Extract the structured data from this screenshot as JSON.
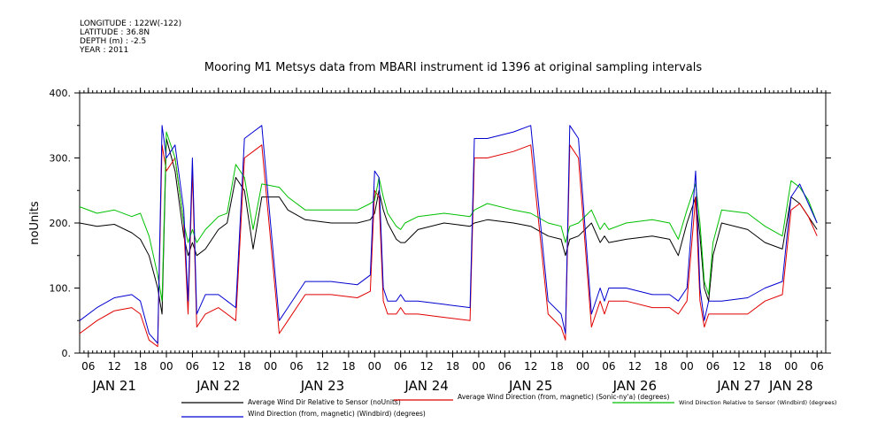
{
  "header": {
    "longitude": "LONGITUDE : 122W(-122)",
    "latitude": "LATITUDE : 36.8N",
    "depth": "DEPTH (m) : -2.5",
    "year": "YEAR : 2011"
  },
  "chart_data": {
    "type": "line",
    "title": "Mooring M1 Metsys data from MBARI instrument id 1396 at original sampling intervals",
    "ylabel": "noUnits",
    "xlabel": "",
    "ylim": [
      0,
      400
    ],
    "yticks": [
      0,
      100,
      200,
      300,
      400
    ],
    "ytick_labels": [
      "0.",
      "100.",
      "200.",
      "300.",
      "400."
    ],
    "xlim": [
      "2011-01-21T04:00",
      "2011-01-28T08:00"
    ],
    "hour_ticks": [
      {
        "t": "2011-01-21T06:00",
        "label": "06"
      },
      {
        "t": "2011-01-21T12:00",
        "label": "12"
      },
      {
        "t": "2011-01-21T18:00",
        "label": "18"
      },
      {
        "t": "2011-01-22T00:00",
        "label": "00"
      },
      {
        "t": "2011-01-22T06:00",
        "label": "06"
      },
      {
        "t": "2011-01-22T12:00",
        "label": "12"
      },
      {
        "t": "2011-01-22T18:00",
        "label": "18"
      },
      {
        "t": "2011-01-23T00:00",
        "label": "00"
      },
      {
        "t": "2011-01-23T06:00",
        "label": "06"
      },
      {
        "t": "2011-01-23T12:00",
        "label": "12"
      },
      {
        "t": "2011-01-23T18:00",
        "label": "18"
      },
      {
        "t": "2011-01-24T00:00",
        "label": "00"
      },
      {
        "t": "2011-01-24T06:00",
        "label": "06"
      },
      {
        "t": "2011-01-24T12:00",
        "label": "12"
      },
      {
        "t": "2011-01-24T18:00",
        "label": "18"
      },
      {
        "t": "2011-01-25T00:00",
        "label": "00"
      },
      {
        "t": "2011-01-25T06:00",
        "label": "06"
      },
      {
        "t": "2011-01-25T12:00",
        "label": "12"
      },
      {
        "t": "2011-01-25T18:00",
        "label": "18"
      },
      {
        "t": "2011-01-26T00:00",
        "label": "00"
      },
      {
        "t": "2011-01-26T06:00",
        "label": "06"
      },
      {
        "t": "2011-01-26T12:00",
        "label": "12"
      },
      {
        "t": "2011-01-26T18:00",
        "label": "18"
      },
      {
        "t": "2011-01-27T00:00",
        "label": "00"
      },
      {
        "t": "2011-01-27T06:00",
        "label": "06"
      },
      {
        "t": "2011-01-27T12:00",
        "label": "12"
      },
      {
        "t": "2011-01-27T18:00",
        "label": "18"
      },
      {
        "t": "2011-01-28T00:00",
        "label": "00"
      },
      {
        "t": "2011-01-28T06:00",
        "label": "06"
      }
    ],
    "day_labels": [
      {
        "t": "2011-01-21T12:00",
        "label": "JAN 21"
      },
      {
        "t": "2011-01-22T12:00",
        "label": "JAN 22"
      },
      {
        "t": "2011-01-23T12:00",
        "label": "JAN 23"
      },
      {
        "t": "2011-01-24T12:00",
        "label": "JAN 24"
      },
      {
        "t": "2011-01-25T12:00",
        "label": "JAN 25"
      },
      {
        "t": "2011-01-26T12:00",
        "label": "JAN 26"
      },
      {
        "t": "2011-01-27T12:00",
        "label": "JAN 27"
      },
      {
        "t": "2011-01-28T00:00",
        "label": "JAN 28"
      }
    ],
    "grid": false,
    "legend_position": "bottom",
    "series": [
      {
        "name": "Average Wind Dir Relative to Sensor (noUnits)",
        "color": "#000000",
        "x": [
          "2011-01-21T04:00",
          "2011-01-21T08:00",
          "2011-01-21T12:00",
          "2011-01-21T16:00",
          "2011-01-21T18:00",
          "2011-01-21T20:00",
          "2011-01-21T22:00",
          "2011-01-21T23:00",
          "2011-01-22T00:00",
          "2011-01-22T02:00",
          "2011-01-22T04:00",
          "2011-01-22T05:00",
          "2011-01-22T06:00",
          "2011-01-22T07:00",
          "2011-01-22T09:00",
          "2011-01-22T12:00",
          "2011-01-22T14:00",
          "2011-01-22T16:00",
          "2011-01-22T18:00",
          "2011-01-22T20:00",
          "2011-01-22T22:00",
          "2011-01-23T02:00",
          "2011-01-23T04:00",
          "2011-01-23T08:00",
          "2011-01-23T14:00",
          "2011-01-23T20:00",
          "2011-01-23T23:00",
          "2011-01-24T00:00",
          "2011-01-24T01:00",
          "2011-01-24T02:00",
          "2011-01-24T03:00",
          "2011-01-24T05:00",
          "2011-01-24T06:00",
          "2011-01-24T07:00",
          "2011-01-24T10:00",
          "2011-01-24T16:00",
          "2011-01-24T22:00",
          "2011-01-24T23:00",
          "2011-01-25T02:00",
          "2011-01-25T08:00",
          "2011-01-25T12:00",
          "2011-01-25T16:00",
          "2011-01-25T19:00",
          "2011-01-25T20:00",
          "2011-01-25T21:00",
          "2011-01-25T23:00",
          "2011-01-26T02:00",
          "2011-01-26T04:00",
          "2011-01-26T05:00",
          "2011-01-26T06:00",
          "2011-01-26T10:00",
          "2011-01-26T16:00",
          "2011-01-26T20:00",
          "2011-01-26T22:00",
          "2011-01-27T00:00",
          "2011-01-27T02:00",
          "2011-01-27T03:00",
          "2011-01-27T04:00",
          "2011-01-27T05:00",
          "2011-01-27T06:00",
          "2011-01-27T08:00",
          "2011-01-27T14:00",
          "2011-01-27T18:00",
          "2011-01-27T22:00",
          "2011-01-28T00:00",
          "2011-01-28T02:00",
          "2011-01-28T04:00",
          "2011-01-28T06:00"
        ],
        "y": [
          200,
          195,
          198,
          185,
          175,
          150,
          100,
          60,
          330,
          280,
          180,
          150,
          170,
          150,
          160,
          190,
          200,
          270,
          250,
          160,
          240,
          240,
          220,
          205,
          200,
          200,
          205,
          215,
          250,
          220,
          200,
          175,
          170,
          170,
          190,
          200,
          195,
          200,
          205,
          200,
          195,
          180,
          175,
          150,
          175,
          180,
          200,
          170,
          180,
          170,
          175,
          180,
          175,
          150,
          200,
          240,
          180,
          100,
          80,
          150,
          200,
          190,
          170,
          160,
          240,
          230,
          210,
          190
        ]
      },
      {
        "name": "Average Wind Direction (from, magnetic) (Sonic-ny'a) (degrees)",
        "color": "#e00000",
        "x": [
          "2011-01-21T04:00",
          "2011-01-21T08:00",
          "2011-01-21T12:00",
          "2011-01-21T16:00",
          "2011-01-21T18:00",
          "2011-01-21T20:00",
          "2011-01-21T22:00",
          "2011-01-21T23:00",
          "2011-01-22T00:00",
          "2011-01-22T02:00",
          "2011-01-22T04:00",
          "2011-01-22T05:00",
          "2011-01-22T06:00",
          "2011-01-22T07:00",
          "2011-01-22T09:00",
          "2011-01-22T12:00",
          "2011-01-22T14:00",
          "2011-01-22T16:00",
          "2011-01-22T18:00",
          "2011-01-22T20:00",
          "2011-01-22T22:00",
          "2011-01-23T02:00",
          "2011-01-23T04:00",
          "2011-01-23T08:00",
          "2011-01-23T14:00",
          "2011-01-23T20:00",
          "2011-01-23T23:00",
          "2011-01-24T00:00",
          "2011-01-24T01:00",
          "2011-01-24T02:00",
          "2011-01-24T03:00",
          "2011-01-24T05:00",
          "2011-01-24T06:00",
          "2011-01-24T07:00",
          "2011-01-24T10:00",
          "2011-01-24T16:00",
          "2011-01-24T22:00",
          "2011-01-24T23:00",
          "2011-01-25T02:00",
          "2011-01-25T08:00",
          "2011-01-25T12:00",
          "2011-01-25T16:00",
          "2011-01-25T19:00",
          "2011-01-25T20:00",
          "2011-01-25T21:00",
          "2011-01-25T23:00",
          "2011-01-26T02:00",
          "2011-01-26T04:00",
          "2011-01-26T05:00",
          "2011-01-26T06:00",
          "2011-01-26T10:00",
          "2011-01-26T16:00",
          "2011-01-26T20:00",
          "2011-01-26T22:00",
          "2011-01-27T00:00",
          "2011-01-27T02:00",
          "2011-01-27T03:00",
          "2011-01-27T04:00",
          "2011-01-27T05:00",
          "2011-01-27T06:00",
          "2011-01-27T08:00",
          "2011-01-27T14:00",
          "2011-01-27T18:00",
          "2011-01-27T22:00",
          "2011-01-28T00:00",
          "2011-01-28T02:00",
          "2011-01-28T04:00",
          "2011-01-28T06:00"
        ],
        "y": [
          30,
          50,
          65,
          70,
          60,
          20,
          10,
          320,
          280,
          300,
          200,
          60,
          280,
          40,
          60,
          70,
          60,
          50,
          300,
          310,
          320,
          30,
          50,
          90,
          90,
          85,
          95,
          250,
          240,
          80,
          60,
          60,
          70,
          60,
          60,
          55,
          50,
          300,
          300,
          310,
          320,
          60,
          40,
          20,
          320,
          300,
          40,
          80,
          60,
          80,
          80,
          70,
          70,
          60,
          80,
          240,
          80,
          40,
          60,
          60,
          60,
          60,
          80,
          90,
          220,
          230,
          210,
          180
        ]
      },
      {
        "name": "Wind Direction Relative to Sensor (Windbird) (degrees)",
        "color": "#00c000",
        "x": [
          "2011-01-21T04:00",
          "2011-01-21T08:00",
          "2011-01-21T12:00",
          "2011-01-21T16:00",
          "2011-01-21T18:00",
          "2011-01-21T20:00",
          "2011-01-21T22:00",
          "2011-01-21T23:00",
          "2011-01-22T00:00",
          "2011-01-22T02:00",
          "2011-01-22T04:00",
          "2011-01-22T05:00",
          "2011-01-22T06:00",
          "2011-01-22T07:00",
          "2011-01-22T09:00",
          "2011-01-22T12:00",
          "2011-01-22T14:00",
          "2011-01-22T16:00",
          "2011-01-22T18:00",
          "2011-01-22T20:00",
          "2011-01-22T22:00",
          "2011-01-23T02:00",
          "2011-01-23T04:00",
          "2011-01-23T08:00",
          "2011-01-23T14:00",
          "2011-01-23T20:00",
          "2011-01-23T23:00",
          "2011-01-24T00:00",
          "2011-01-24T01:00",
          "2011-01-24T02:00",
          "2011-01-24T03:00",
          "2011-01-24T05:00",
          "2011-01-24T06:00",
          "2011-01-24T07:00",
          "2011-01-24T10:00",
          "2011-01-24T16:00",
          "2011-01-24T22:00",
          "2011-01-24T23:00",
          "2011-01-25T02:00",
          "2011-01-25T08:00",
          "2011-01-25T12:00",
          "2011-01-25T16:00",
          "2011-01-25T19:00",
          "2011-01-25T20:00",
          "2011-01-25T21:00",
          "2011-01-25T23:00",
          "2011-01-26T02:00",
          "2011-01-26T04:00",
          "2011-01-26T05:00",
          "2011-01-26T06:00",
          "2011-01-26T10:00",
          "2011-01-26T16:00",
          "2011-01-26T20:00",
          "2011-01-26T22:00",
          "2011-01-27T00:00",
          "2011-01-27T02:00",
          "2011-01-27T03:00",
          "2011-01-27T04:00",
          "2011-01-27T05:00",
          "2011-01-27T06:00",
          "2011-01-27T08:00",
          "2011-01-27T14:00",
          "2011-01-27T18:00",
          "2011-01-27T22:00",
          "2011-01-28T00:00",
          "2011-01-28T02:00",
          "2011-01-28T04:00",
          "2011-01-28T06:00"
        ],
        "y": [
          225,
          215,
          220,
          210,
          215,
          180,
          120,
          80,
          340,
          300,
          200,
          170,
          190,
          170,
          190,
          210,
          215,
          290,
          270,
          190,
          260,
          255,
          240,
          220,
          220,
          220,
          230,
          235,
          270,
          240,
          215,
          195,
          190,
          200,
          210,
          215,
          210,
          220,
          230,
          220,
          215,
          200,
          195,
          170,
          195,
          200,
          220,
          190,
          200,
          190,
          200,
          205,
          200,
          175,
          220,
          260,
          200,
          110,
          90,
          170,
          220,
          215,
          195,
          180,
          265,
          255,
          235,
          200
        ]
      },
      {
        "name": "Wind Direction (from, magnetic) (Windbird) (degrees)",
        "color": "#0000d0",
        "x": [
          "2011-01-21T04:00",
          "2011-01-21T08:00",
          "2011-01-21T12:00",
          "2011-01-21T16:00",
          "2011-01-21T18:00",
          "2011-01-21T20:00",
          "2011-01-21T22:00",
          "2011-01-21T23:00",
          "2011-01-22T00:00",
          "2011-01-22T02:00",
          "2011-01-22T04:00",
          "2011-01-22T05:00",
          "2011-01-22T06:00",
          "2011-01-22T07:00",
          "2011-01-22T09:00",
          "2011-01-22T12:00",
          "2011-01-22T14:00",
          "2011-01-22T16:00",
          "2011-01-22T18:00",
          "2011-01-22T20:00",
          "2011-01-22T22:00",
          "2011-01-23T02:00",
          "2011-01-23T04:00",
          "2011-01-23T08:00",
          "2011-01-23T14:00",
          "2011-01-23T20:00",
          "2011-01-23T23:00",
          "2011-01-24T00:00",
          "2011-01-24T01:00",
          "2011-01-24T02:00",
          "2011-01-24T03:00",
          "2011-01-24T05:00",
          "2011-01-24T06:00",
          "2011-01-24T07:00",
          "2011-01-24T10:00",
          "2011-01-24T16:00",
          "2011-01-24T22:00",
          "2011-01-24T23:00",
          "2011-01-25T02:00",
          "2011-01-25T08:00",
          "2011-01-25T12:00",
          "2011-01-25T16:00",
          "2011-01-25T19:00",
          "2011-01-25T20:00",
          "2011-01-25T21:00",
          "2011-01-25T23:00",
          "2011-01-26T02:00",
          "2011-01-26T04:00",
          "2011-01-26T05:00",
          "2011-01-26T06:00",
          "2011-01-26T10:00",
          "2011-01-26T16:00",
          "2011-01-26T20:00",
          "2011-01-26T22:00",
          "2011-01-27T00:00",
          "2011-01-27T02:00",
          "2011-01-27T03:00",
          "2011-01-27T04:00",
          "2011-01-27T05:00",
          "2011-01-27T06:00",
          "2011-01-27T08:00",
          "2011-01-27T14:00",
          "2011-01-27T18:00",
          "2011-01-27T22:00",
          "2011-01-28T00:00",
          "2011-01-28T02:00",
          "2011-01-28T04:00",
          "2011-01-28T06:00"
        ],
        "y": [
          50,
          70,
          85,
          90,
          80,
          30,
          15,
          350,
          300,
          320,
          220,
          80,
          300,
          60,
          90,
          90,
          80,
          70,
          330,
          340,
          350,
          50,
          70,
          110,
          110,
          105,
          120,
          280,
          270,
          100,
          80,
          80,
          90,
          80,
          80,
          75,
          70,
          330,
          330,
          340,
          350,
          80,
          60,
          30,
          350,
          330,
          60,
          100,
          80,
          100,
          100,
          90,
          90,
          80,
          100,
          280,
          100,
          50,
          80,
          80,
          80,
          85,
          100,
          110,
          240,
          260,
          230,
          200
        ]
      }
    ]
  }
}
